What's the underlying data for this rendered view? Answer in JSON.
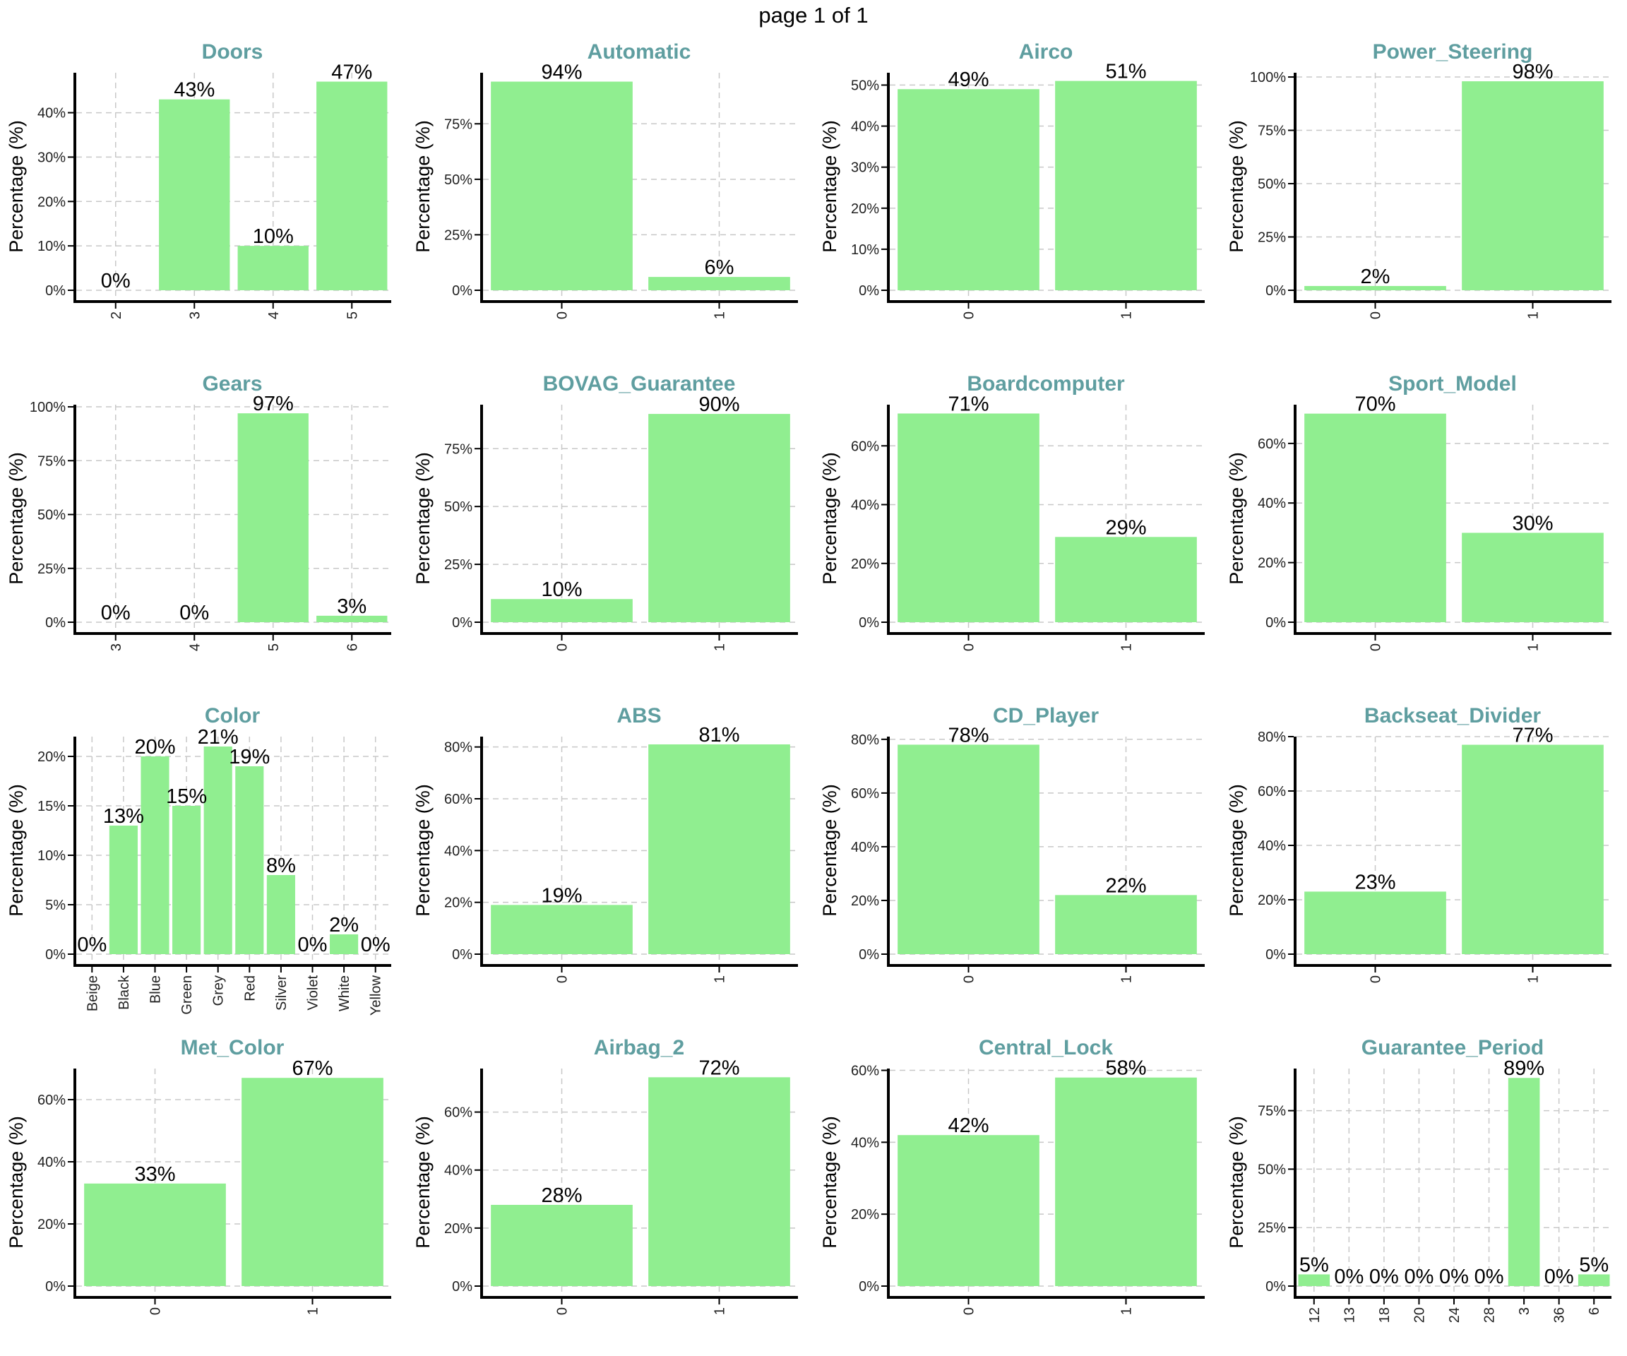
{
  "page_title": "page 1 of 1",
  "colors": {
    "bar": "#90EE90",
    "title": "#5F9EA0",
    "grid": "#C8C8C8",
    "axis": "#000000"
  },
  "chart_data": [
    {
      "type": "bar",
      "title": "Doors",
      "xlabel": "",
      "ylabel": "Percentage (%)",
      "categories": [
        "2",
        "3",
        "4",
        "5"
      ],
      "values": [
        0,
        43,
        10,
        47
      ],
      "labels": [
        "0%",
        "43%",
        "10%",
        "47%"
      ],
      "ylim": [
        0,
        49
      ],
      "yticks": [
        0,
        10,
        20,
        30,
        40
      ],
      "ytick_labels": [
        "0%",
        "10%",
        "20%",
        "30%",
        "40%"
      ],
      "grid": true
    },
    {
      "type": "bar",
      "title": "Automatic",
      "xlabel": "",
      "ylabel": "Percentage (%)",
      "categories": [
        "0",
        "1"
      ],
      "values": [
        94,
        6
      ],
      "labels": [
        "94%",
        "6%"
      ],
      "ylim": [
        0,
        98
      ],
      "yticks": [
        0,
        25,
        50,
        75
      ],
      "ytick_labels": [
        "0%",
        "25%",
        "50%",
        "75%"
      ],
      "grid": true
    },
    {
      "type": "bar",
      "title": "Airco",
      "xlabel": "",
      "ylabel": "Percentage (%)",
      "categories": [
        "0",
        "1"
      ],
      "values": [
        49,
        51
      ],
      "labels": [
        "49%",
        "51%"
      ],
      "ylim": [
        0,
        53
      ],
      "yticks": [
        0,
        10,
        20,
        30,
        40,
        50
      ],
      "ytick_labels": [
        "0%",
        "10%",
        "20%",
        "30%",
        "40%",
        "50%"
      ],
      "grid": true
    },
    {
      "type": "bar",
      "title": "Power_Steering",
      "xlabel": "",
      "ylabel": "Percentage (%)",
      "categories": [
        "0",
        "1"
      ],
      "values": [
        2,
        98
      ],
      "labels": [
        "2%",
        "98%"
      ],
      "ylim": [
        0,
        102
      ],
      "yticks": [
        0,
        25,
        50,
        75,
        100
      ],
      "ytick_labels": [
        "0%",
        "25%",
        "50%",
        "75%",
        "100%"
      ],
      "grid": true
    },
    {
      "type": "bar",
      "title": "Gears",
      "xlabel": "",
      "ylabel": "Percentage (%)",
      "categories": [
        "3",
        "4",
        "5",
        "6"
      ],
      "values": [
        0,
        0,
        97,
        3
      ],
      "labels": [
        "0%",
        "0%",
        "97%",
        "3%"
      ],
      "ylim": [
        0,
        101
      ],
      "yticks": [
        0,
        25,
        50,
        75,
        100
      ],
      "ytick_labels": [
        "0%",
        "25%",
        "50%",
        "75%",
        "100%"
      ],
      "grid": true
    },
    {
      "type": "bar",
      "title": "BOVAG_Guarantee",
      "xlabel": "",
      "ylabel": "Percentage (%)",
      "categories": [
        "0",
        "1"
      ],
      "values": [
        10,
        90
      ],
      "labels": [
        "10%",
        "90%"
      ],
      "ylim": [
        0,
        94
      ],
      "yticks": [
        0,
        25,
        50,
        75
      ],
      "ytick_labels": [
        "0%",
        "25%",
        "50%",
        "75%"
      ],
      "grid": true
    },
    {
      "type": "bar",
      "title": "Boardcomputer",
      "xlabel": "",
      "ylabel": "Percentage (%)",
      "categories": [
        "0",
        "1"
      ],
      "values": [
        71,
        29
      ],
      "labels": [
        "71%",
        "29%"
      ],
      "ylim": [
        0,
        74
      ],
      "yticks": [
        0,
        20,
        40,
        60
      ],
      "ytick_labels": [
        "0%",
        "20%",
        "40%",
        "60%"
      ],
      "grid": true
    },
    {
      "type": "bar",
      "title": "Sport_Model",
      "xlabel": "",
      "ylabel": "Percentage (%)",
      "categories": [
        "0",
        "1"
      ],
      "values": [
        70,
        30
      ],
      "labels": [
        "70%",
        "30%"
      ],
      "ylim": [
        0,
        73
      ],
      "yticks": [
        0,
        20,
        40,
        60
      ],
      "ytick_labels": [
        "0%",
        "20%",
        "40%",
        "60%"
      ],
      "grid": true
    },
    {
      "type": "bar",
      "title": "Color",
      "xlabel": "",
      "ylabel": "Percentage (%)",
      "categories": [
        "Beige",
        "Black",
        "Blue",
        "Green",
        "Grey",
        "Red",
        "Silver",
        "Violet",
        "White",
        "Yellow"
      ],
      "values": [
        0,
        13,
        20,
        15,
        21,
        19,
        8,
        0,
        2,
        0
      ],
      "labels": [
        "0%",
        "13%",
        "20%",
        "15%",
        "21%",
        "19%",
        "8%",
        "0%",
        "2%",
        "0%"
      ],
      "ylim": [
        0,
        22
      ],
      "yticks": [
        0,
        5,
        10,
        15,
        20
      ],
      "ytick_labels": [
        "0%",
        "5%",
        "10%",
        "15%",
        "20%"
      ],
      "grid": true
    },
    {
      "type": "bar",
      "title": "ABS",
      "xlabel": "",
      "ylabel": "Percentage (%)",
      "categories": [
        "0",
        "1"
      ],
      "values": [
        19,
        81
      ],
      "labels": [
        "19%",
        "81%"
      ],
      "ylim": [
        0,
        84
      ],
      "yticks": [
        0,
        20,
        40,
        60,
        80
      ],
      "ytick_labels": [
        "0%",
        "20%",
        "40%",
        "60%",
        "80%"
      ],
      "grid": true
    },
    {
      "type": "bar",
      "title": "CD_Player",
      "xlabel": "",
      "ylabel": "Percentage (%)",
      "categories": [
        "0",
        "1"
      ],
      "values": [
        78,
        22
      ],
      "labels": [
        "78%",
        "22%"
      ],
      "ylim": [
        0,
        81
      ],
      "yticks": [
        0,
        20,
        40,
        60,
        80
      ],
      "ytick_labels": [
        "0%",
        "20%",
        "40%",
        "60%",
        "80%"
      ],
      "grid": true
    },
    {
      "type": "bar",
      "title": "Backseat_Divider",
      "xlabel": "",
      "ylabel": "Percentage (%)",
      "categories": [
        "0",
        "1"
      ],
      "values": [
        23,
        77
      ],
      "labels": [
        "23%",
        "77%"
      ],
      "ylim": [
        0,
        80
      ],
      "yticks": [
        0,
        20,
        40,
        60,
        80
      ],
      "ytick_labels": [
        "0%",
        "20%",
        "40%",
        "60%",
        "80%"
      ],
      "grid": true
    },
    {
      "type": "bar",
      "title": "Met_Color",
      "xlabel": "",
      "ylabel": "Percentage (%)",
      "categories": [
        "0",
        "1"
      ],
      "values": [
        33,
        67
      ],
      "labels": [
        "33%",
        "67%"
      ],
      "ylim": [
        0,
        70
      ],
      "yticks": [
        0,
        20,
        40,
        60
      ],
      "ytick_labels": [
        "0%",
        "20%",
        "40%",
        "60%"
      ],
      "grid": true
    },
    {
      "type": "bar",
      "title": "Airbag_2",
      "xlabel": "",
      "ylabel": "Percentage (%)",
      "categories": [
        "0",
        "1"
      ],
      "values": [
        28,
        72
      ],
      "labels": [
        "28%",
        "72%"
      ],
      "ylim": [
        0,
        75
      ],
      "yticks": [
        0,
        20,
        40,
        60
      ],
      "ytick_labels": [
        "0%",
        "20%",
        "40%",
        "60%"
      ],
      "grid": true
    },
    {
      "type": "bar",
      "title": "Central_Lock",
      "xlabel": "",
      "ylabel": "Percentage (%)",
      "categories": [
        "0",
        "1"
      ],
      "values": [
        42,
        58
      ],
      "labels": [
        "42%",
        "58%"
      ],
      "ylim": [
        0,
        60.5
      ],
      "yticks": [
        0,
        20,
        40,
        60
      ],
      "ytick_labels": [
        "0%",
        "20%",
        "40%",
        "60%"
      ],
      "grid": true
    },
    {
      "type": "bar",
      "title": "Guarantee_Period",
      "xlabel": "",
      "ylabel": "Percentage (%)",
      "categories": [
        "12",
        "13",
        "18",
        "20",
        "24",
        "28",
        "3",
        "36",
        "6"
      ],
      "values": [
        5,
        0,
        0,
        0,
        0,
        0,
        89,
        0,
        5
      ],
      "labels": [
        "5%",
        "0%",
        "0%",
        "0%",
        "0%",
        "0%",
        "89%",
        "0%",
        "5%"
      ],
      "ylim": [
        0,
        93
      ],
      "yticks": [
        0,
        25,
        50,
        75
      ],
      "ytick_labels": [
        "0%",
        "25%",
        "50%",
        "75%"
      ],
      "grid": true
    }
  ]
}
